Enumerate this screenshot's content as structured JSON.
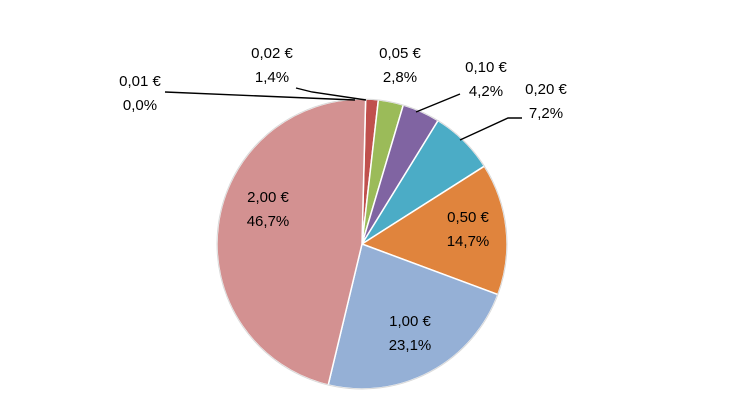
{
  "chart_data": {
    "type": "pie",
    "title": "",
    "slices": [
      {
        "label": "0,01 €",
        "value": 0.0,
        "pct_label": "0,0%",
        "color": "#8b3a3a"
      },
      {
        "label": "0,02 €",
        "value": 1.4,
        "pct_label": "1,4%",
        "color": "#c0504d"
      },
      {
        "label": "0,05 €",
        "value": 2.8,
        "pct_label": "2,8%",
        "color": "#9bbb59"
      },
      {
        "label": "0,10 €",
        "value": 4.2,
        "pct_label": "4,2%",
        "color": "#8064a2"
      },
      {
        "label": "0,20 €",
        "value": 7.2,
        "pct_label": "7,2%",
        "color": "#4bacc6"
      },
      {
        "label": "0,50 €",
        "value": 14.7,
        "pct_label": "14,7%",
        "color": "#e0843d"
      },
      {
        "label": "1,00 €",
        "value": 23.1,
        "pct_label": "23,1%",
        "color": "#95b0d6"
      },
      {
        "label": "2,00 €",
        "value": 46.7,
        "pct_label": "46,7%",
        "color": "#d39191"
      }
    ],
    "start_angle_deg": 0,
    "direction": "clockwise",
    "legend": "none",
    "data_labels": "category and percentage"
  }
}
